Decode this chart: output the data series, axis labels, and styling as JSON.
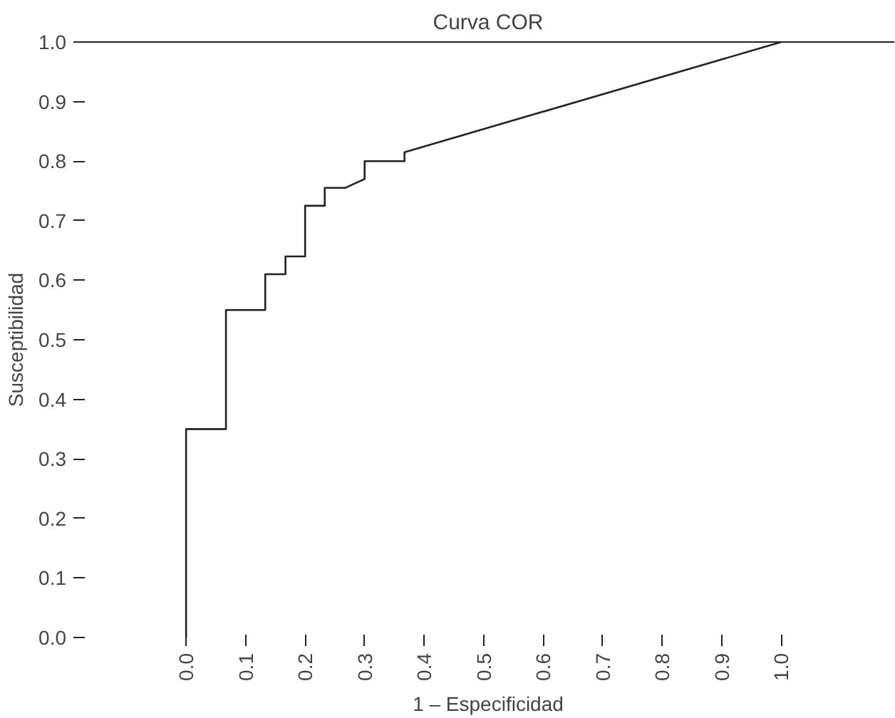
{
  "chart_data": {
    "type": "line",
    "title": "Curva COR",
    "xlabel": "1 – Especificidad",
    "ylabel": "Susceptibilidad",
    "x": [
      0.0,
      0.0,
      0.067,
      0.067,
      0.133,
      0.133,
      0.167,
      0.167,
      0.2,
      0.2,
      0.233,
      0.233,
      0.267,
      0.3,
      0.3,
      0.367,
      0.367,
      1.0
    ],
    "series": [
      {
        "color": "#222222",
        "values": [
          0.0,
          0.35,
          0.35,
          0.55,
          0.55,
          0.61,
          0.61,
          0.64,
          0.64,
          0.725,
          0.725,
          0.755,
          0.755,
          0.77,
          0.8,
          0.8,
          0.815,
          1.0
        ]
      }
    ],
    "xlim": [
      -0.175,
      1.19
    ],
    "ylim": [
      0.0,
      1.0
    ],
    "xticks": [
      {
        "value": 0.0,
        "label": "0.0"
      },
      0.1,
      0.2,
      0.3,
      0.4,
      0.5,
      0.6,
      0.7,
      0.8,
      0.9,
      {
        "value": 1.0,
        "label": "1.0"
      }
    ],
    "yticks": [
      {
        "value": 0.0,
        "label": "0.0"
      },
      0.1,
      0.2,
      0.3,
      0.4,
      0.5,
      0.6,
      0.7,
      0.8,
      0.9,
      {
        "value": 1.0,
        "label": "1.0"
      }
    ],
    "grid": false
  }
}
